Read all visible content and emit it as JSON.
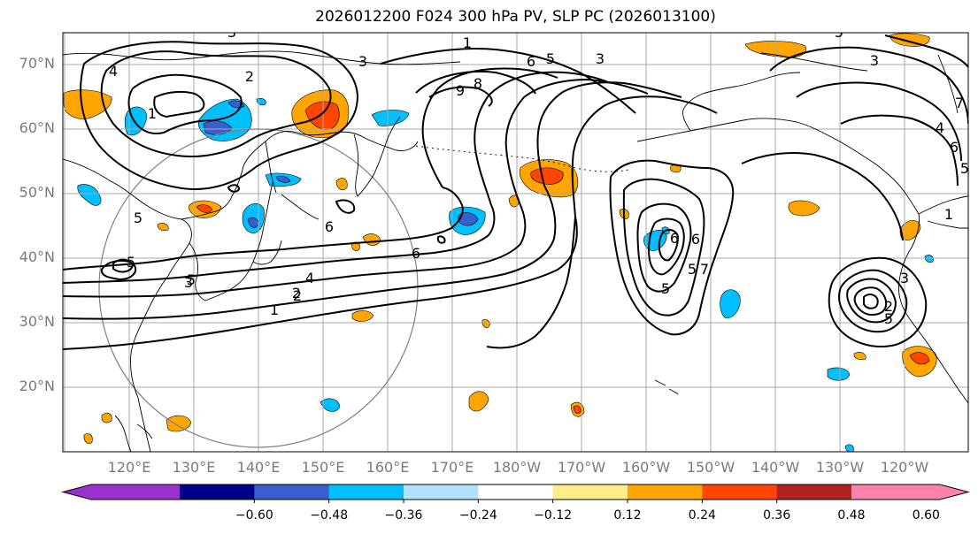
{
  "title": "2026012200 F024 300 hPa PV, SLP PC (2026013100)",
  "latitudes": [
    "70°N",
    "60°N",
    "50°N",
    "40°N",
    "30°N",
    "20°N"
  ],
  "longitudes": [
    "120°E",
    "130°E",
    "140°E",
    "150°E",
    "160°E",
    "170°E",
    "180°W",
    "170°W",
    "160°W",
    "150°W",
    "140°W",
    "130°W",
    "120°W"
  ],
  "colorbar": {
    "ticks": [
      "−0.60",
      "−0.48",
      "−0.36",
      "−0.24",
      "−0.12",
      "0.12",
      "0.24",
      "0.36",
      "0.48",
      "0.60"
    ],
    "colors": [
      "#9932cc",
      "#00008b",
      "#3a5fcd",
      "#00bfff",
      "#b0e2ff",
      "#ffffff",
      "#ffec8b",
      "#ffa500",
      "#ff4500",
      "#b22222",
      "#ff82ab"
    ]
  },
  "contour_labels": [
    "1",
    "2",
    "3",
    "4",
    "5",
    "6",
    "6",
    "5",
    "3",
    "2",
    "1",
    "9",
    "8",
    "5",
    "3",
    "6",
    "5",
    "6",
    "4",
    "2",
    "1",
    "3",
    "7",
    "6",
    "5",
    "1",
    "3",
    "5",
    "2",
    "5",
    "7",
    "5",
    "6",
    "3",
    "5",
    "4"
  ],
  "colors": {
    "contour": "#000000",
    "coast": "#000000",
    "grid": "#a9a9a9",
    "range_circle": "#808080",
    "axis_text": "#7a7a7a"
  }
}
